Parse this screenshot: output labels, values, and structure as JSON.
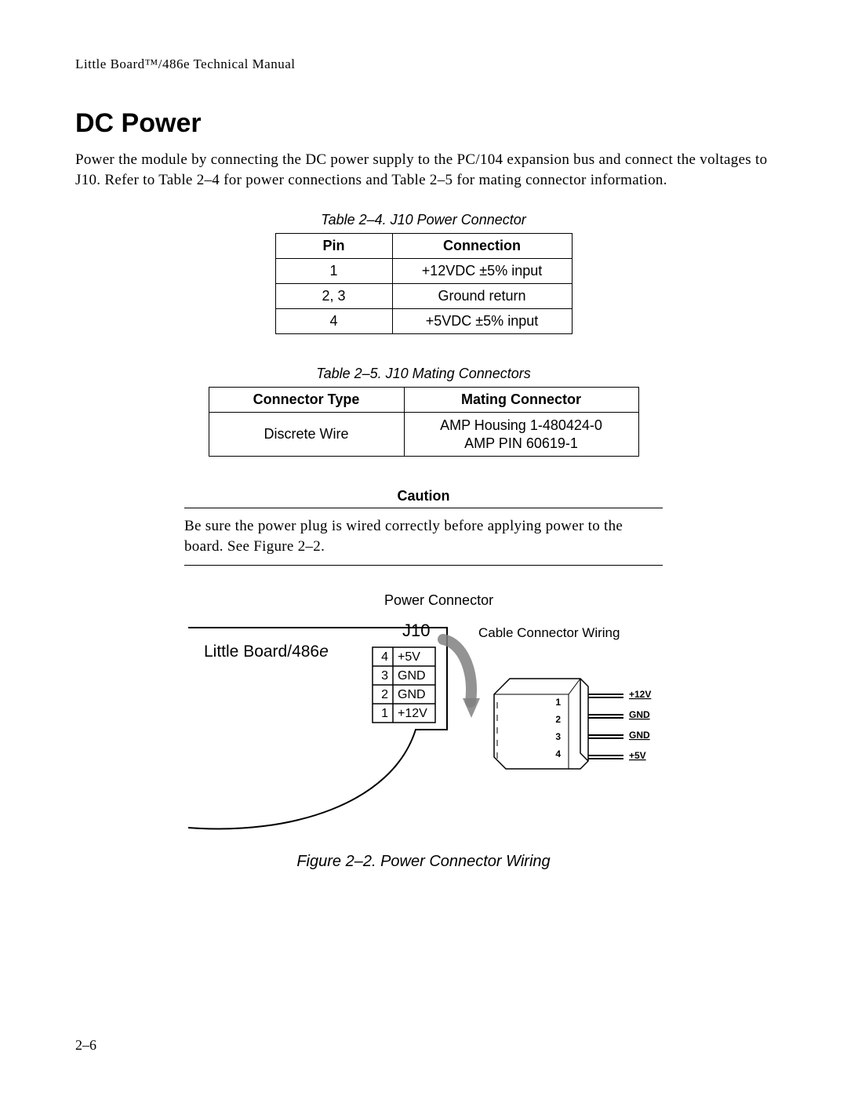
{
  "header": {
    "running": "Little Board™/486e Technical Manual"
  },
  "section": {
    "title": "DC Power",
    "para": "Power the module by connecting the DC power supply to the PC/104 expansion bus and connect the voltages to J10. Refer to Table 2–4 for power connections and Table 2–5 for mating connector information."
  },
  "table1": {
    "caption": "Table 2–4. J10 Power Connector",
    "columns": [
      "Pin",
      "Connection"
    ],
    "rows": [
      [
        "1",
        "+12VDC ±5% input"
      ],
      [
        "2, 3",
        "Ground return"
      ],
      [
        "4",
        "+5VDC ±5% input"
      ]
    ]
  },
  "table2": {
    "caption": "Table 2–5. J10 Mating Connectors",
    "columns": [
      "Connector Type",
      "Mating Connector"
    ],
    "rows": [
      [
        "Discrete Wire",
        "AMP Housing 1-480424-0\nAMP PIN 60619-1"
      ]
    ]
  },
  "caution": {
    "title": "Caution",
    "text": "Be sure the power plug is wired correctly before applying power to the board. See Figure 2–2."
  },
  "figure": {
    "caption": "Figure 2–2. Power Connector Wiring",
    "labels": {
      "top": "Power Connector",
      "board": "Little Board/486e",
      "jref": "J10",
      "cable": "Cable  Connector  Wiring"
    },
    "pinbox": {
      "rows": [
        {
          "n": "4",
          "v": "+5V"
        },
        {
          "n": "3",
          "v": "GND"
        },
        {
          "n": "2",
          "v": "GND"
        },
        {
          "n": "1",
          "v": "+12V"
        }
      ]
    },
    "conn_left_nums": [
      "1",
      "2",
      "3",
      "4"
    ],
    "conn_right": [
      "+12V",
      "GND",
      "GND",
      "+5V"
    ],
    "colors": {
      "stroke": "#000000",
      "fill_board": "#ffffff",
      "fill_plug": "#ffffff",
      "arrow": "#808080"
    }
  },
  "pagenum": "2–6"
}
